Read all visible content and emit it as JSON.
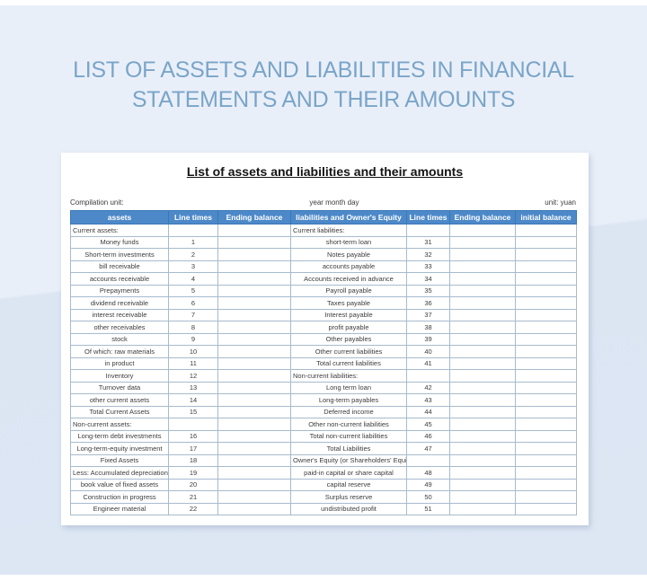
{
  "hero": {
    "title": "LIST OF ASSETS AND LIABILITIES IN FINANCIAL STATEMENTS AND THEIR AMOUNTS",
    "title_color": "#7aa5c8"
  },
  "sheet": {
    "title": "List of assets and liabilities and their amounts",
    "meta": {
      "compilation_unit": "Compilation unit:",
      "date": "year month day",
      "unit": "unit: yuan"
    },
    "header_bg_color": "#4d89c8",
    "columns": [
      "assets",
      "Line times",
      "Ending balance",
      "liabilities and Owner's Equity",
      "Line times",
      "Ending balance",
      "initial balance"
    ],
    "rows": [
      {
        "asset": {
          "label": "Current assets:",
          "line": "",
          "section": true
        },
        "liability": {
          "label": "Current liabilities:",
          "line": "",
          "section": true
        }
      },
      {
        "asset": {
          "label": "Money funds",
          "line": "1",
          "section": false
        },
        "liability": {
          "label": "short-term loan",
          "line": "31",
          "section": false
        }
      },
      {
        "asset": {
          "label": "Short-term investments",
          "line": "2",
          "section": false
        },
        "liability": {
          "label": "Notes payable",
          "line": "32",
          "section": false
        }
      },
      {
        "asset": {
          "label": "bill receivable",
          "line": "3",
          "section": false
        },
        "liability": {
          "label": "accounts payable",
          "line": "33",
          "section": false
        }
      },
      {
        "asset": {
          "label": "accounts receivable",
          "line": "4",
          "section": false
        },
        "liability": {
          "label": "Accounts received in advance",
          "line": "34",
          "section": false
        }
      },
      {
        "asset": {
          "label": "Prepayments",
          "line": "5",
          "section": false
        },
        "liability": {
          "label": "Payroll payable",
          "line": "35",
          "section": false
        }
      },
      {
        "asset": {
          "label": "dividend receivable",
          "line": "6",
          "section": false
        },
        "liability": {
          "label": "Taxes payable",
          "line": "36",
          "section": false
        }
      },
      {
        "asset": {
          "label": "interest receivable",
          "line": "7",
          "section": false
        },
        "liability": {
          "label": "Interest payable",
          "line": "37",
          "section": false
        }
      },
      {
        "asset": {
          "label": "other receivables",
          "line": "8",
          "section": false
        },
        "liability": {
          "label": "profit payable",
          "line": "38",
          "section": false
        }
      },
      {
        "asset": {
          "label": "stock",
          "line": "9",
          "section": false
        },
        "liability": {
          "label": "Other payables",
          "line": "39",
          "section": false
        }
      },
      {
        "asset": {
          "label": "Of which: raw materials",
          "line": "10",
          "section": false
        },
        "liability": {
          "label": "Other current liabilities",
          "line": "40",
          "section": false
        }
      },
      {
        "asset": {
          "label": "in product",
          "line": "11",
          "section": false
        },
        "liability": {
          "label": "Total current liabilities",
          "line": "41",
          "section": false
        }
      },
      {
        "asset": {
          "label": "Inventory",
          "line": "12",
          "section": false
        },
        "liability": {
          "label": "Non-current liabilities:",
          "line": "",
          "section": true
        }
      },
      {
        "asset": {
          "label": "Turnover data",
          "line": "13",
          "section": false
        },
        "liability": {
          "label": "Long term loan",
          "line": "42",
          "section": false
        }
      },
      {
        "asset": {
          "label": "other current assets",
          "line": "14",
          "section": false
        },
        "liability": {
          "label": "Long-term payables",
          "line": "43",
          "section": false
        }
      },
      {
        "asset": {
          "label": "Total Current Assets",
          "line": "15",
          "section": false
        },
        "liability": {
          "label": "Deferred income",
          "line": "44",
          "section": false
        }
      },
      {
        "asset": {
          "label": "Non-current assets:",
          "line": "",
          "section": true
        },
        "liability": {
          "label": "Other non-current liabilities",
          "line": "45",
          "section": false
        }
      },
      {
        "asset": {
          "label": "Long-term debt investments",
          "line": "16",
          "section": false
        },
        "liability": {
          "label": "Total non-current liabilities",
          "line": "46",
          "section": false
        }
      },
      {
        "asset": {
          "label": "Long-term-equity investment",
          "line": "17",
          "section": false
        },
        "liability": {
          "label": "Total Liabilities",
          "line": "47",
          "section": false
        }
      },
      {
        "asset": {
          "label": "Fixed Assets",
          "line": "18",
          "section": false
        },
        "liability": {
          "label": "Owner's Equity (or Shareholders' Equity)",
          "line": "",
          "section": true
        }
      },
      {
        "asset": {
          "label": "Less: Accumulated depreciation",
          "line": "19",
          "section": false
        },
        "liability": {
          "label": "paid-in capital or share capital",
          "line": "48",
          "section": false
        }
      },
      {
        "asset": {
          "label": "book value of fixed assets",
          "line": "20",
          "section": false
        },
        "liability": {
          "label": "capital reserve",
          "line": "49",
          "section": false
        }
      },
      {
        "asset": {
          "label": "Construction in progress",
          "line": "21",
          "section": false
        },
        "liability": {
          "label": "Surplus reserve",
          "line": "50",
          "section": false
        }
      },
      {
        "asset": {
          "label": "Engineer material",
          "line": "22",
          "section": false
        },
        "liability": {
          "label": "undistributed profit",
          "line": "51",
          "section": false
        }
      }
    ]
  }
}
